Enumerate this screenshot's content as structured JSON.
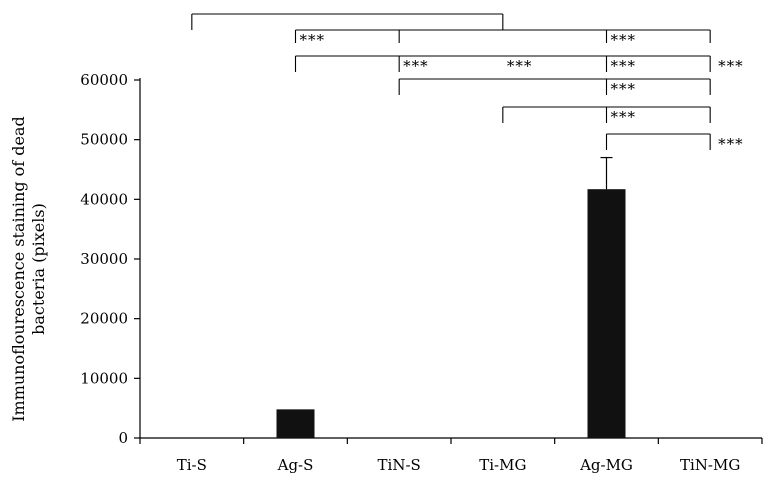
{
  "chart_data": {
    "type": "bar",
    "categories": [
      "Ti-S",
      "Ag-S",
      "TiN-S",
      "Ti-MG",
      "Ag-MG",
      "TiN-MG"
    ],
    "values": [
      0,
      4800,
      0,
      0,
      41700,
      0
    ],
    "error_upper": [
      0,
      0,
      0,
      0,
      47000,
      0
    ],
    "title": "",
    "xlabel": "",
    "ylabel_lines": [
      "Immunoflourescence staining of dead",
      "bacteria (pixels)"
    ],
    "ylim": [
      0,
      60000
    ],
    "yticks": [
      0,
      10000,
      20000,
      30000,
      40000,
      50000,
      60000
    ],
    "ytick_labels": [
      "0",
      "10000",
      "20000",
      "30000",
      "40000",
      "50000",
      "60000"
    ],
    "bar_color": "#111111",
    "grid": false,
    "significance": [
      {
        "left": "Ti-S",
        "right": "Ti-MG",
        "drops": [
          "Ti-S",
          "Ti-MG"
        ],
        "labels": []
      },
      {
        "left": "Ag-S",
        "right": "TiN-MG",
        "drops": [
          "Ag-S",
          "TiN-S",
          "Ag-MG",
          "TiN-MG"
        ],
        "labels": [
          {
            "at": "Ag-S",
            "text": "***"
          },
          {
            "at": "Ag-MG",
            "text": "***"
          }
        ]
      },
      {
        "left": "Ag-S",
        "right": "TiN-MG",
        "drops": [
          "Ag-S",
          "TiN-S",
          "Ag-MG",
          "TiN-MG"
        ],
        "labels": [
          {
            "at": "TiN-S",
            "text": "***"
          },
          {
            "at": "Ti-MG",
            "text": "***"
          },
          {
            "at": "Ag-MG",
            "text": "***"
          },
          {
            "after": "TiN-MG",
            "text": "***"
          }
        ]
      },
      {
        "left": "TiN-S",
        "right": "TiN-MG",
        "drops": [
          "TiN-S",
          "Ag-MG",
          "TiN-MG"
        ],
        "labels": [
          {
            "at": "Ag-MG",
            "text": "***"
          }
        ]
      },
      {
        "left": "Ti-MG",
        "right": "TiN-MG",
        "drops": [
          "Ti-MG",
          "Ag-MG",
          "TiN-MG"
        ],
        "labels": [
          {
            "at": "Ag-MG",
            "text": "***"
          }
        ]
      },
      {
        "left": "Ag-MG",
        "right": "TiN-MG",
        "drops": [
          "Ag-MG",
          "TiN-MG"
        ],
        "labels": [
          {
            "after": "TiN-MG",
            "text": "***"
          }
        ]
      }
    ]
  }
}
